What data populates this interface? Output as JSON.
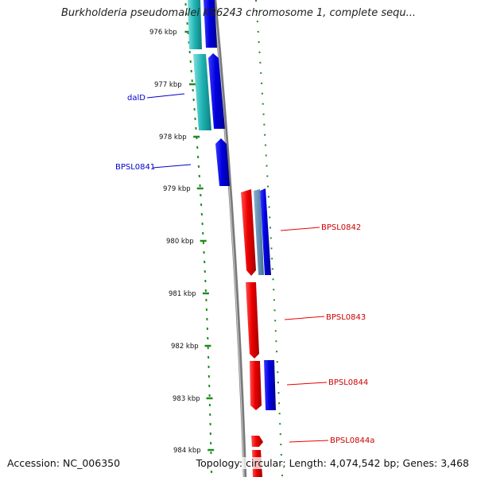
{
  "title": "Burkholderia pseudomallei K96243 chromosome 1, complete sequ...",
  "accession": "Accession: NC_006350",
  "summary": "Topology: circular; Length: 4,074,542 bp; Genes: 3,468",
  "colors": {
    "forward_strand": "#0000cc",
    "reverse_strand": "#ee0000",
    "cyan_feature": "#1fb3b3",
    "backbone": "#888888",
    "tick_marks": "#228b22"
  },
  "ticks": [
    {
      "label": "976 kbp",
      "kbp": 976
    },
    {
      "label": "977 kbp",
      "kbp": 977
    },
    {
      "label": "978 kbp",
      "kbp": 978
    },
    {
      "label": "979 kbp",
      "kbp": 979
    },
    {
      "label": "980 kbp",
      "kbp": 980
    },
    {
      "label": "981 kbp",
      "kbp": 981
    },
    {
      "label": "982 kbp",
      "kbp": 982
    },
    {
      "label": "983 kbp",
      "kbp": 983
    },
    {
      "label": "984 kbp",
      "kbp": 984
    }
  ],
  "genes": [
    {
      "label": "dalD",
      "color": "blue"
    },
    {
      "label": "BPSL0841",
      "color": "blue"
    },
    {
      "label": "BPSL0842",
      "color": "red"
    },
    {
      "label": "BPSL0843",
      "color": "red"
    },
    {
      "label": "BPSL0844",
      "color": "red"
    },
    {
      "label": "BPSL0844a",
      "color": "red"
    }
  ]
}
